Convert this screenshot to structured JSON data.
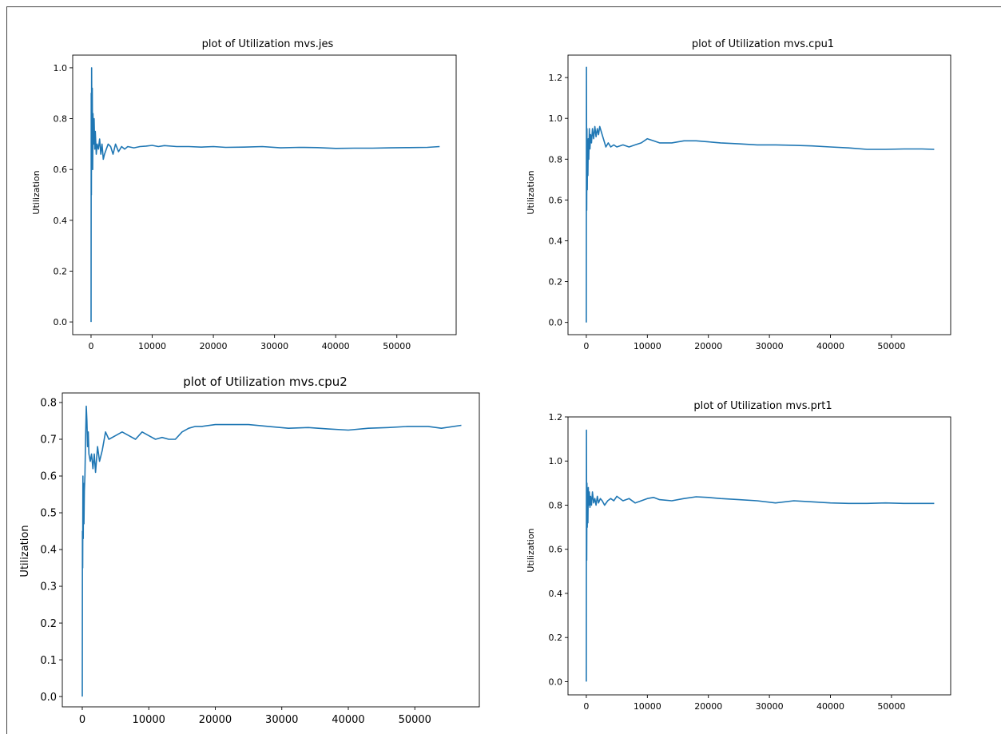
{
  "figure": {
    "charts": [
      {
        "title": "plot of Utilization mvs.jes",
        "ylabel": "Utilization",
        "series_color": "#1f77b4",
        "xticks": [
          "0",
          "10000",
          "20000",
          "30000",
          "40000",
          "50000"
        ],
        "yticks": [
          "0.0",
          "0.2",
          "0.4",
          "0.6",
          "0.8",
          "1.0"
        ]
      },
      {
        "title": "plot of Utilization mvs.cpu1",
        "ylabel": "Utilization",
        "series_color": "#1f77b4",
        "xticks": [
          "0",
          "10000",
          "20000",
          "30000",
          "40000",
          "50000"
        ],
        "yticks": [
          "0.0",
          "0.2",
          "0.4",
          "0.6",
          "0.8",
          "1.0",
          "1.2"
        ]
      },
      {
        "title": "plot of Utilization mvs.cpu2",
        "ylabel": "Utilization",
        "series_color": "#1f77b4",
        "xticks": [
          "0",
          "10000",
          "20000",
          "30000",
          "40000",
          "50000"
        ],
        "yticks": [
          "0.0",
          "0.1",
          "0.2",
          "0.3",
          "0.4",
          "0.5",
          "0.6",
          "0.7",
          "0.8"
        ]
      },
      {
        "title": "plot of Utilization mvs.prt1",
        "ylabel": "Utilization",
        "series_color": "#1f77b4",
        "xticks": [
          "0",
          "10000",
          "20000",
          "30000",
          "40000",
          "50000"
        ],
        "yticks": [
          "0.0",
          "0.2",
          "0.4",
          "0.6",
          "0.8",
          "1.0",
          "1.2"
        ]
      }
    ]
  },
  "chart_data": [
    {
      "type": "line",
      "title": "plot of Utilization mvs.jes",
      "xlabel": "",
      "ylabel": "Utilization",
      "xlim": [
        -3000,
        59700
      ],
      "ylim": [
        -0.05,
        1.05
      ],
      "grid": false,
      "x": [
        0,
        30,
        60,
        100,
        150,
        200,
        260,
        320,
        400,
        500,
        600,
        700,
        850,
        1000,
        1200,
        1400,
        1600,
        1800,
        2000,
        2200,
        2500,
        2800,
        3200,
        3600,
        4000,
        4500,
        5000,
        5500,
        6000,
        7000,
        8000,
        9000,
        10000,
        11000,
        12000,
        14000,
        16000,
        18000,
        20000,
        22000,
        25000,
        28000,
        31000,
        34000,
        37000,
        40000,
        43000,
        46000,
        49000,
        52000,
        55000,
        57000
      ],
      "y": [
        0.0,
        0.9,
        0.5,
        1.0,
        0.66,
        0.92,
        0.6,
        0.82,
        0.7,
        0.8,
        0.68,
        0.75,
        0.66,
        0.7,
        0.68,
        0.72,
        0.66,
        0.7,
        0.64,
        0.66,
        0.68,
        0.7,
        0.69,
        0.66,
        0.7,
        0.67,
        0.69,
        0.68,
        0.69,
        0.685,
        0.69,
        0.692,
        0.695,
        0.69,
        0.694,
        0.69,
        0.69,
        0.688,
        0.69,
        0.687,
        0.688,
        0.69,
        0.685,
        0.687,
        0.686,
        0.683,
        0.684,
        0.684,
        0.685,
        0.686,
        0.687,
        0.69
      ]
    },
    {
      "type": "line",
      "title": "plot of Utilization mvs.cpu1",
      "xlabel": "",
      "ylabel": "Utilization",
      "xlim": [
        -3000,
        59700
      ],
      "ylim": [
        -0.06,
        1.31
      ],
      "grid": false,
      "x": [
        0,
        30,
        60,
        100,
        150,
        200,
        260,
        320,
        400,
        500,
        600,
        700,
        850,
        1000,
        1200,
        1400,
        1600,
        1800,
        2000,
        2200,
        2500,
        2800,
        3200,
        3600,
        4000,
        4500,
        5000,
        6000,
        7000,
        8000,
        9000,
        10000,
        11000,
        12000,
        14000,
        16000,
        18000,
        20000,
        22000,
        25000,
        28000,
        31000,
        34000,
        37000,
        40000,
        43000,
        46000,
        49000,
        52000,
        55000,
        57000
      ],
      "y": [
        0.0,
        1.25,
        0.55,
        0.95,
        0.65,
        0.85,
        0.72,
        0.9,
        0.8,
        0.95,
        0.85,
        0.92,
        0.88,
        0.95,
        0.9,
        0.96,
        0.91,
        0.95,
        0.92,
        0.96,
        0.93,
        0.9,
        0.86,
        0.88,
        0.86,
        0.87,
        0.86,
        0.87,
        0.86,
        0.87,
        0.88,
        0.9,
        0.89,
        0.88,
        0.88,
        0.89,
        0.89,
        0.885,
        0.88,
        0.875,
        0.87,
        0.87,
        0.868,
        0.865,
        0.86,
        0.855,
        0.848,
        0.848,
        0.85,
        0.85,
        0.848
      ]
    },
    {
      "type": "line",
      "title": "plot of Utilization mvs.cpu2",
      "xlabel": "",
      "ylabel": "Utilization",
      "xlim": [
        -3000,
        59700
      ],
      "ylim": [
        -0.028,
        0.826
      ],
      "grid": false,
      "x": [
        0,
        30,
        60,
        100,
        150,
        200,
        260,
        320,
        400,
        500,
        600,
        700,
        800,
        900,
        1000,
        1200,
        1400,
        1600,
        1800,
        2000,
        2300,
        2600,
        3000,
        3500,
        4000,
        5000,
        6000,
        7000,
        8000,
        9000,
        10000,
        11000,
        12000,
        13000,
        14000,
        15000,
        16000,
        17000,
        18000,
        20000,
        22000,
        25000,
        28000,
        31000,
        34000,
        37000,
        40000,
        43000,
        46000,
        49000,
        52000,
        54000,
        57000
      ],
      "y": [
        0.0,
        0.45,
        0.35,
        0.6,
        0.43,
        0.58,
        0.47,
        0.56,
        0.6,
        0.7,
        0.79,
        0.75,
        0.68,
        0.72,
        0.66,
        0.64,
        0.66,
        0.62,
        0.66,
        0.61,
        0.68,
        0.64,
        0.67,
        0.72,
        0.7,
        0.71,
        0.72,
        0.71,
        0.7,
        0.72,
        0.71,
        0.7,
        0.705,
        0.7,
        0.7,
        0.72,
        0.73,
        0.735,
        0.735,
        0.74,
        0.74,
        0.74,
        0.735,
        0.73,
        0.732,
        0.728,
        0.725,
        0.73,
        0.732,
        0.735,
        0.735,
        0.73,
        0.738
      ]
    },
    {
      "type": "line",
      "title": "plot of Utilization mvs.prt1",
      "xlabel": "",
      "ylabel": "Utilization",
      "xlim": [
        -3000,
        59700
      ],
      "ylim": [
        -0.06,
        1.2
      ],
      "grid": false,
      "x": [
        0,
        30,
        60,
        100,
        150,
        200,
        260,
        320,
        400,
        500,
        600,
        700,
        850,
        1000,
        1200,
        1400,
        1600,
        1800,
        2000,
        2300,
        2600,
        3000,
        3500,
        4000,
        4500,
        5000,
        6000,
        7000,
        8000,
        9000,
        10000,
        11000,
        12000,
        14000,
        16000,
        18000,
        20000,
        22000,
        25000,
        28000,
        31000,
        34000,
        37000,
        40000,
        43000,
        46000,
        49000,
        52000,
        55000,
        57000
      ],
      "y": [
        0.0,
        1.14,
        0.55,
        0.9,
        0.7,
        0.85,
        0.72,
        0.88,
        0.8,
        0.86,
        0.79,
        0.84,
        0.8,
        0.86,
        0.81,
        0.83,
        0.8,
        0.84,
        0.81,
        0.83,
        0.82,
        0.8,
        0.82,
        0.83,
        0.82,
        0.84,
        0.82,
        0.83,
        0.81,
        0.82,
        0.83,
        0.835,
        0.825,
        0.82,
        0.83,
        0.838,
        0.835,
        0.83,
        0.825,
        0.82,
        0.81,
        0.82,
        0.815,
        0.81,
        0.808,
        0.808,
        0.81,
        0.808,
        0.808,
        0.808
      ]
    }
  ]
}
